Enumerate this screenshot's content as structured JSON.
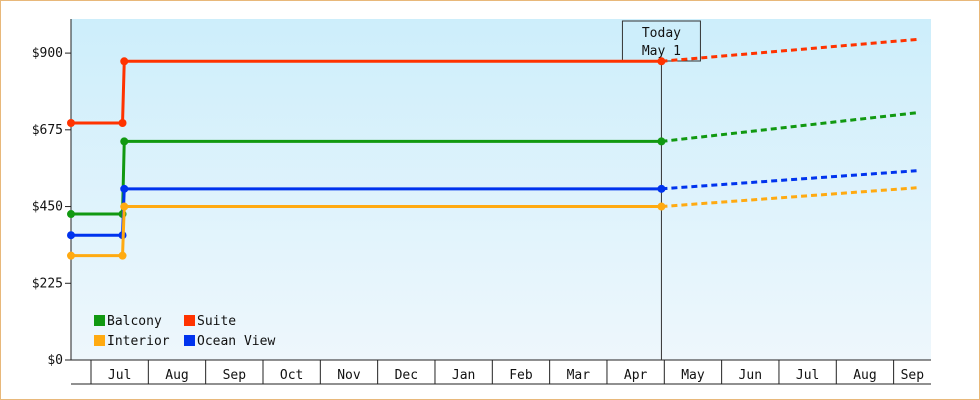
{
  "chart_data": {
    "type": "line",
    "step": true,
    "ylim": [
      0,
      1000
    ],
    "yticks": [
      0,
      225,
      450,
      675,
      900
    ],
    "ytick_labels": [
      "$0",
      "$225",
      "$450",
      "$675",
      "$900"
    ],
    "months": [
      "",
      "Jul",
      "Aug",
      "Sep",
      "Oct",
      "Nov",
      "Dec",
      "Jan",
      "Feb",
      "Mar",
      "Apr",
      "May",
      "Jun",
      "Jul",
      "Aug",
      "Sep"
    ],
    "today": {
      "line1": "Today",
      "line2": "May 1",
      "month_index": 10.95
    },
    "series": [
      {
        "name": "Suite",
        "color": "#ff3300",
        "x": [
          0,
          1.55,
          1.58,
          10.95
        ],
        "values": [
          695,
          695,
          876,
          876
        ],
        "forecast": {
          "x": [
            10.95,
            15.4
          ],
          "values": [
            876,
            940
          ]
        }
      },
      {
        "name": "Balcony",
        "color": "#119911",
        "x": [
          0,
          1.55,
          1.58,
          10.95
        ],
        "values": [
          428,
          428,
          641,
          641
        ],
        "forecast": {
          "x": [
            10.95,
            15.4
          ],
          "values": [
            641,
            725
          ]
        }
      },
      {
        "name": "Ocean View",
        "color": "#0033ee",
        "x": [
          0,
          1.55,
          1.58,
          10.95
        ],
        "values": [
          366,
          366,
          502,
          502
        ],
        "forecast": {
          "x": [
            10.95,
            15.4
          ],
          "values": [
            502,
            555
          ]
        }
      },
      {
        "name": "Interior",
        "color": "#ffaa11",
        "x": [
          0,
          1.55,
          1.58,
          10.95
        ],
        "values": [
          306,
          306,
          450,
          450
        ],
        "forecast": {
          "x": [
            10.95,
            15.4
          ],
          "values": [
            450,
            505
          ]
        }
      }
    ],
    "legend": {
      "placement": "bottom-left",
      "rows": [
        [
          {
            "name": "Balcony",
            "color": "#119911"
          },
          {
            "name": "Suite",
            "color": "#ff3300"
          }
        ],
        [
          {
            "name": "Interior",
            "color": "#ffaa11"
          },
          {
            "name": "Ocean View",
            "color": "#0033ee"
          }
        ]
      ]
    },
    "background_gradient": [
      "#cdeefb",
      "#eef7fc"
    ],
    "grid": false
  }
}
